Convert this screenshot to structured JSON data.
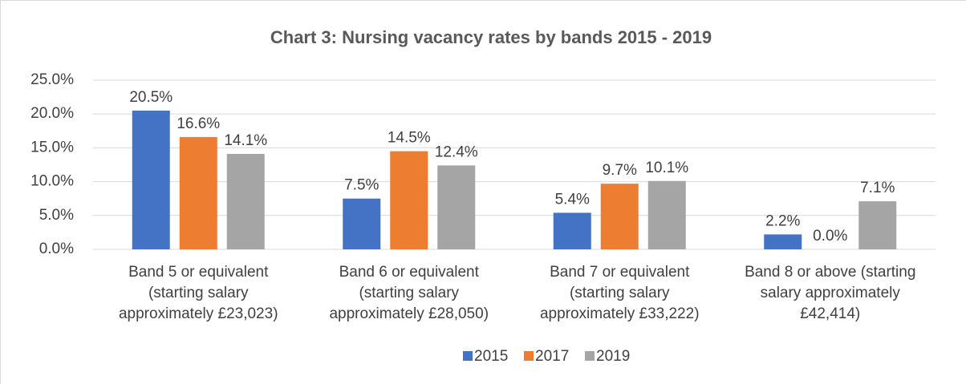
{
  "chart_data": {
    "type": "bar",
    "title": "Chart 3: Nursing vacancy rates by bands 2015 - 2019",
    "categories": [
      "Band 5 or equivalent (starting salary approximately £23,023)",
      "Band 6 or equivalent (starting salary approximately £28,050)",
      "Band 7 or equivalent (starting salary approximately £33,222)",
      "Band 8 or above (starting salary approximately £42,414)"
    ],
    "series": [
      {
        "name": "2015",
        "color": "#4472c4",
        "values": [
          20.5,
          7.5,
          5.4,
          2.2
        ],
        "value_labels": [
          "20.5%",
          "7.5%",
          "5.4%",
          "2.2%"
        ]
      },
      {
        "name": "2017",
        "color": "#ed7d31",
        "values": [
          16.6,
          14.5,
          9.7,
          0.0
        ],
        "value_labels": [
          "16.6%",
          "14.5%",
          "9.7%",
          "0.0%"
        ]
      },
      {
        "name": "2019",
        "color": "#a5a5a5",
        "values": [
          14.1,
          12.4,
          10.1,
          7.1
        ],
        "value_labels": [
          "14.1%",
          "12.4%",
          "10.1%",
          "7.1%"
        ]
      }
    ],
    "ylim": [
      0,
      25
    ],
    "yticks": [
      {
        "value": 0,
        "label": "0.0%"
      },
      {
        "value": 5,
        "label": "5.0%"
      },
      {
        "value": 10,
        "label": "10.0%"
      },
      {
        "value": 15,
        "label": "15.0%"
      },
      {
        "value": 20,
        "label": "20.0%"
      },
      {
        "value": 25,
        "label": "25.0%"
      }
    ],
    "grid": true,
    "legend": "bottom"
  }
}
